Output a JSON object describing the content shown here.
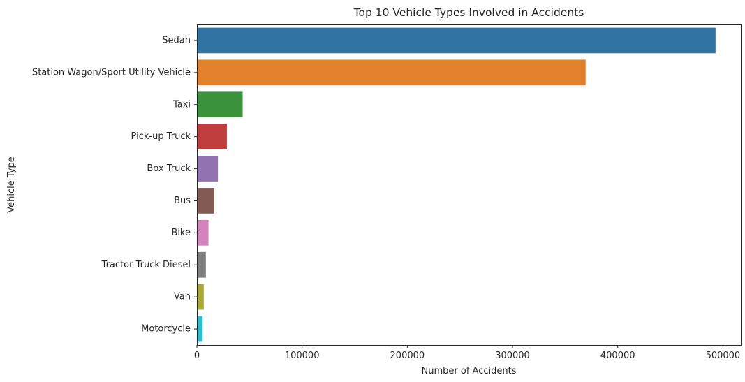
{
  "chart_data": {
    "type": "bar",
    "orientation": "horizontal",
    "title": "Top 10 Vehicle Types Involved in Accidents",
    "xlabel": "Number of Accidents",
    "ylabel": "Vehicle Type",
    "xlim": [
      0,
      517000
    ],
    "xticks": [
      0,
      100000,
      200000,
      300000,
      400000,
      500000
    ],
    "xtick_labels": [
      "0",
      "100000",
      "200000",
      "300000",
      "400000",
      "500000"
    ],
    "grid": false,
    "categories": [
      "Sedan",
      "Station Wagon/Sport Utility Vehicle",
      "Taxi",
      "Pick-up Truck",
      "Box Truck",
      "Bus",
      "Bike",
      "Tractor Truck Diesel",
      "Van",
      "Motorcycle"
    ],
    "values": [
      493000,
      369500,
      43500,
      28500,
      20000,
      16500,
      11000,
      8500,
      6500,
      5500
    ],
    "colors": [
      "#3274a1",
      "#e1812c",
      "#3a923a",
      "#c03d3e",
      "#9372b2",
      "#845b53",
      "#d684bd",
      "#7f7f7f",
      "#a9aa35",
      "#2ebdcc"
    ]
  }
}
